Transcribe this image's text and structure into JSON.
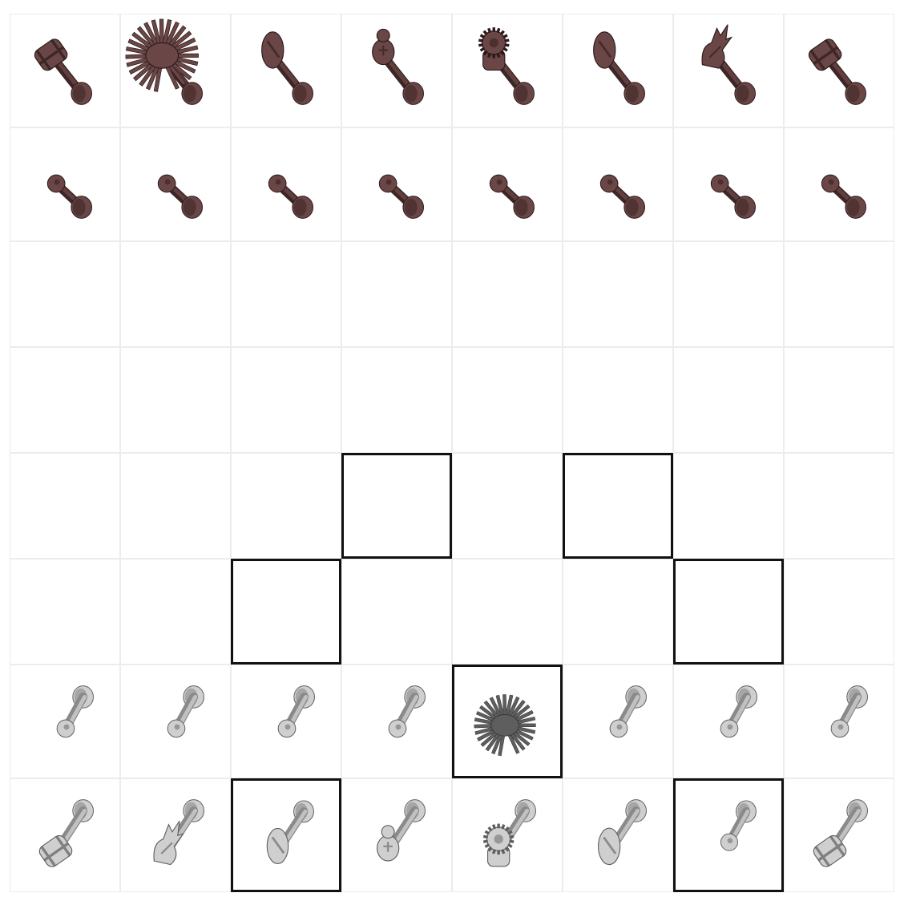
{
  "board": {
    "files": 8,
    "ranks": 8,
    "dark_color": "#5a3a3a",
    "light_color": "#cfcfcf",
    "highlight_color": "#111111",
    "squares": [
      [
        {
          "piece": "dark-rook-icon",
          "side": "dark",
          "kind": "rook"
        },
        {
          "piece": "dark-knight-icon",
          "side": "dark",
          "kind": "fan"
        },
        {
          "piece": "dark-bishop-icon",
          "side": "dark",
          "kind": "bishop"
        },
        {
          "piece": "dark-queen-icon",
          "side": "dark",
          "kind": "queen"
        },
        {
          "piece": "dark-king-icon",
          "side": "dark",
          "kind": "king"
        },
        {
          "piece": "dark-bishop-icon",
          "side": "dark",
          "kind": "bishop"
        },
        {
          "piece": "dark-knight-icon",
          "side": "dark",
          "kind": "knight"
        },
        {
          "piece": "dark-rook-icon",
          "side": "dark",
          "kind": "rook"
        }
      ],
      [
        {
          "piece": "dark-pawn-icon",
          "side": "dark",
          "kind": "pawn"
        },
        {
          "piece": "dark-pawn-icon",
          "side": "dark",
          "kind": "pawn"
        },
        {
          "piece": "dark-pawn-icon",
          "side": "dark",
          "kind": "pawn"
        },
        {
          "piece": "dark-pawn-icon",
          "side": "dark",
          "kind": "pawn"
        },
        {
          "piece": "dark-pawn-icon",
          "side": "dark",
          "kind": "pawn"
        },
        {
          "piece": "dark-pawn-icon",
          "side": "dark",
          "kind": "pawn"
        },
        {
          "piece": "dark-pawn-icon",
          "side": "dark",
          "kind": "pawn"
        },
        {
          "piece": "dark-pawn-icon",
          "side": "dark",
          "kind": "pawn"
        }
      ],
      [
        {},
        {},
        {},
        {},
        {},
        {},
        {},
        {}
      ],
      [
        {},
        {},
        {},
        {},
        {},
        {},
        {},
        {}
      ],
      [
        {},
        {},
        {},
        {
          "hl": true
        },
        {},
        {
          "hl": true
        },
        {},
        {}
      ],
      [
        {},
        {},
        {
          "hl": true
        },
        {},
        {},
        {},
        {
          "hl": true
        },
        {}
      ],
      [
        {
          "piece": "light-pawn-icon",
          "side": "light",
          "kind": "pawn"
        },
        {
          "piece": "light-pawn-icon",
          "side": "light",
          "kind": "pawn"
        },
        {
          "piece": "light-pawn-icon",
          "side": "light",
          "kind": "pawn"
        },
        {
          "piece": "light-pawn-icon",
          "side": "light",
          "kind": "pawn"
        },
        {
          "piece": "light-knight-icon",
          "side": "light",
          "kind": "fan",
          "hl": true
        },
        {
          "piece": "light-pawn-icon",
          "side": "light",
          "kind": "pawn"
        },
        {
          "piece": "light-pawn-icon",
          "side": "light",
          "kind": "pawn"
        },
        {
          "piece": "light-pawn-icon",
          "side": "light",
          "kind": "pawn"
        }
      ],
      [
        {
          "piece": "light-rook-icon",
          "side": "light",
          "kind": "rook"
        },
        {
          "piece": "light-knight-icon",
          "side": "light",
          "kind": "knight"
        },
        {
          "piece": "light-bishop-icon",
          "side": "light",
          "kind": "bishop",
          "hl": true
        },
        {
          "piece": "light-queen-icon",
          "side": "light",
          "kind": "queen"
        },
        {
          "piece": "light-king-icon",
          "side": "light",
          "kind": "king"
        },
        {
          "piece": "light-bishop-icon",
          "side": "light",
          "kind": "bishop"
        },
        {
          "piece": "light-pawn-icon",
          "side": "light",
          "kind": "pawn",
          "hl": true
        },
        {
          "piece": "light-rook-icon",
          "side": "light",
          "kind": "rook"
        }
      ]
    ]
  }
}
